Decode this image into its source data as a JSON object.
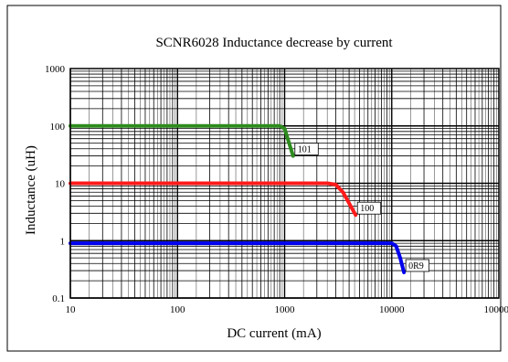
{
  "chart_data": {
    "type": "line",
    "title": "SCNR6028 Inductance decrease by current",
    "xlabel": "DC current (mA)",
    "ylabel": "Inductance (uH)",
    "xscale": "log",
    "yscale": "log",
    "xlim": [
      10,
      100000
    ],
    "ylim": [
      0.1,
      1000
    ],
    "grid": true,
    "x_ticks": [
      "10",
      "100",
      "1000",
      "10000",
      "100000"
    ],
    "y_ticks": [
      "0.1",
      "1",
      "10",
      "100",
      "1000"
    ],
    "series": [
      {
        "name": "101",
        "color": "#2e8b1e",
        "x": [
          10,
          100,
          500,
          900,
          1000,
          1100,
          1200
        ],
        "y": [
          100,
          100,
          100,
          100,
          90,
          50,
          30
        ]
      },
      {
        "name": "100",
        "color": "#ff1a1a",
        "x": [
          10,
          100,
          1000,
          2500,
          3000,
          3500,
          4000,
          4600
        ],
        "y": [
          10,
          10,
          10,
          10,
          9.5,
          7,
          4.5,
          2.8
        ]
      },
      {
        "name": "0R9",
        "color": "#0000ee",
        "x": [
          10,
          100,
          1000,
          10000,
          11000,
          12000,
          13000
        ],
        "y": [
          0.9,
          0.9,
          0.9,
          0.9,
          0.8,
          0.5,
          0.28
        ]
      }
    ]
  }
}
